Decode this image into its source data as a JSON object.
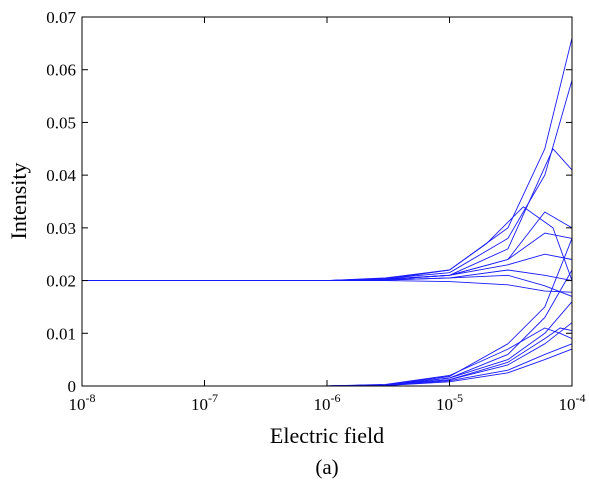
{
  "chart_data": {
    "type": "line",
    "xlabel": "Electric field",
    "ylabel": "Intensity",
    "caption": "(a)",
    "x_scale": "log",
    "xlim": [
      1e-08,
      0.0001
    ],
    "ylim": [
      0,
      0.07
    ],
    "grid": false,
    "legend": "none",
    "line_color": "#1a1aff",
    "x_ticks": [
      {
        "value": 1e-08,
        "base": "10",
        "exp": "-8"
      },
      {
        "value": 1e-07,
        "base": "10",
        "exp": "-7"
      },
      {
        "value": 1e-06,
        "base": "10",
        "exp": "-6"
      },
      {
        "value": 1e-05,
        "base": "10",
        "exp": "-5"
      },
      {
        "value": 0.0001,
        "base": "10",
        "exp": "-4"
      }
    ],
    "y_ticks": [
      {
        "value": 0,
        "label": "0"
      },
      {
        "value": 0.01,
        "label": "0.01"
      },
      {
        "value": 0.02,
        "label": "0.02"
      },
      {
        "value": 0.03,
        "label": "0.03"
      },
      {
        "value": 0.04,
        "label": "0.04"
      },
      {
        "value": 0.05,
        "label": "0.05"
      },
      {
        "value": 0.06,
        "label": "0.06"
      },
      {
        "value": 0.07,
        "label": "0.07"
      }
    ],
    "series": [
      {
        "x": [
          1e-08,
          1e-06,
          3e-06,
          1e-05,
          3e-05,
          6e-05,
          0.0001
        ],
        "y": [
          0.02,
          0.02,
          0.0205,
          0.022,
          0.03,
          0.045,
          0.066
        ]
      },
      {
        "x": [
          1e-08,
          1e-06,
          3e-06,
          1e-05,
          3e-05,
          6e-05,
          0.0001
        ],
        "y": [
          0.02,
          0.02,
          0.0204,
          0.0215,
          0.028,
          0.04,
          0.058
        ]
      },
      {
        "x": [
          1e-08,
          1e-06,
          3e-06,
          1e-05,
          3e-05,
          7e-05,
          0.0001
        ],
        "y": [
          0.02,
          0.02,
          0.0203,
          0.021,
          0.026,
          0.045,
          0.041
        ]
      },
      {
        "x": [
          1e-08,
          1e-06,
          3e-06,
          1e-05,
          2e-05,
          4e-05,
          7e-05,
          0.0001
        ],
        "y": [
          0.02,
          0.02,
          0.0203,
          0.022,
          0.027,
          0.034,
          0.03,
          0.02
        ]
      },
      {
        "x": [
          1e-08,
          1e-06,
          3e-06,
          1e-05,
          3e-05,
          6e-05,
          0.0001
        ],
        "y": [
          0.02,
          0.02,
          0.0202,
          0.021,
          0.024,
          0.029,
          0.028
        ]
      },
      {
        "x": [
          1e-08,
          1e-06,
          3e-06,
          1e-05,
          3e-05,
          6e-05,
          0.0001
        ],
        "y": [
          0.02,
          0.02,
          0.0202,
          0.021,
          0.023,
          0.025,
          0.024
        ]
      },
      {
        "x": [
          1e-08,
          1e-06,
          3e-06,
          1e-05,
          3e-05,
          6e-05,
          0.0001
        ],
        "y": [
          0.02,
          0.02,
          0.0201,
          0.0205,
          0.021,
          0.019,
          0.017
        ]
      },
      {
        "x": [
          1e-08,
          1e-06,
          3e-06,
          1e-05,
          3e-05,
          6e-05,
          0.0001
        ],
        "y": [
          0.02,
          0.02,
          0.02,
          0.0198,
          0.0192,
          0.018,
          0.0178
        ]
      },
      {
        "x": [
          1e-08,
          1e-06,
          3e-06,
          1e-05,
          3e-05,
          6e-05,
          0.0001
        ],
        "y": [
          0.02,
          0.02,
          0.0201,
          0.0205,
          0.022,
          0.021,
          0.02
        ]
      },
      {
        "x": [
          1e-08,
          1e-06,
          3e-06,
          1e-05,
          3e-05,
          6e-05,
          0.0001
        ],
        "y": [
          0.02,
          0.02,
          0.0202,
          0.021,
          0.024,
          0.033,
          0.03
        ]
      },
      {
        "x": [
          1e-06,
          3e-06,
          1e-05,
          3e-05,
          6e-05,
          0.0001
        ],
        "y": [
          0,
          0.0002,
          0.0015,
          0.005,
          0.01,
          0.016
        ]
      },
      {
        "x": [
          1e-06,
          3e-06,
          1e-05,
          3e-05,
          6e-05,
          0.0001
        ],
        "y": [
          0,
          0.0002,
          0.0012,
          0.004,
          0.008,
          0.012
        ]
      },
      {
        "x": [
          1e-06,
          3e-06,
          1e-05,
          3e-05,
          6e-05,
          8e-05,
          0.0001
        ],
        "y": [
          0,
          0.0003,
          0.002,
          0.007,
          0.011,
          0.01,
          0.009
        ]
      },
      {
        "x": [
          1e-06,
          3e-06,
          1e-05,
          3e-05,
          6e-05,
          0.0001
        ],
        "y": [
          0,
          0.0002,
          0.0015,
          0.006,
          0.013,
          0.022
        ]
      },
      {
        "x": [
          1e-06,
          3e-06,
          1e-05,
          3e-05,
          6e-05,
          0.0001
        ],
        "y": [
          0,
          0.0001,
          0.001,
          0.003,
          0.006,
          0.008
        ]
      },
      {
        "x": [
          1e-06,
          3e-06,
          1e-05,
          3e-05,
          6e-05,
          0.0001
        ],
        "y": [
          0,
          0.0001,
          0.0008,
          0.0025,
          0.005,
          0.007
        ]
      },
      {
        "x": [
          1e-06,
          3e-06,
          1e-05,
          3e-05,
          6e-05,
          0.0001
        ],
        "y": [
          0,
          0.0002,
          0.0018,
          0.008,
          0.015,
          0.028
        ]
      },
      {
        "x": [
          1e-06,
          3e-06,
          1e-05,
          3e-05,
          6e-05,
          8e-05,
          0.0001
        ],
        "y": [
          0,
          0.0002,
          0.0012,
          0.0045,
          0.009,
          0.011,
          0.0105
        ]
      }
    ]
  }
}
